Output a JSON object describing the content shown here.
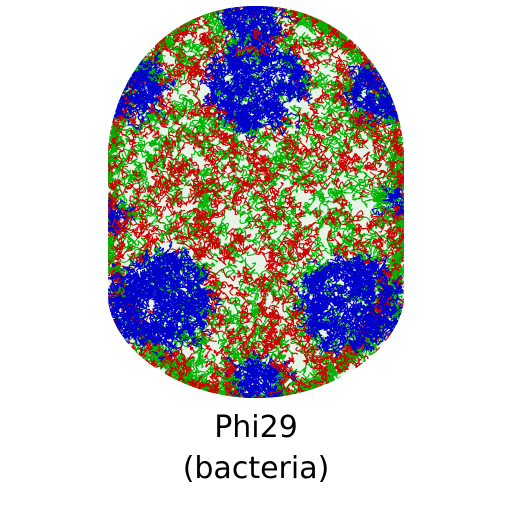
{
  "figure": {
    "colors": {
      "chain_a": "#0000cc",
      "chain_b": "#cc0000",
      "chain_c": "#00b400",
      "background": "#ffffff"
    }
  },
  "caption": {
    "name": "Phi29",
    "host": "(bacteria)"
  }
}
